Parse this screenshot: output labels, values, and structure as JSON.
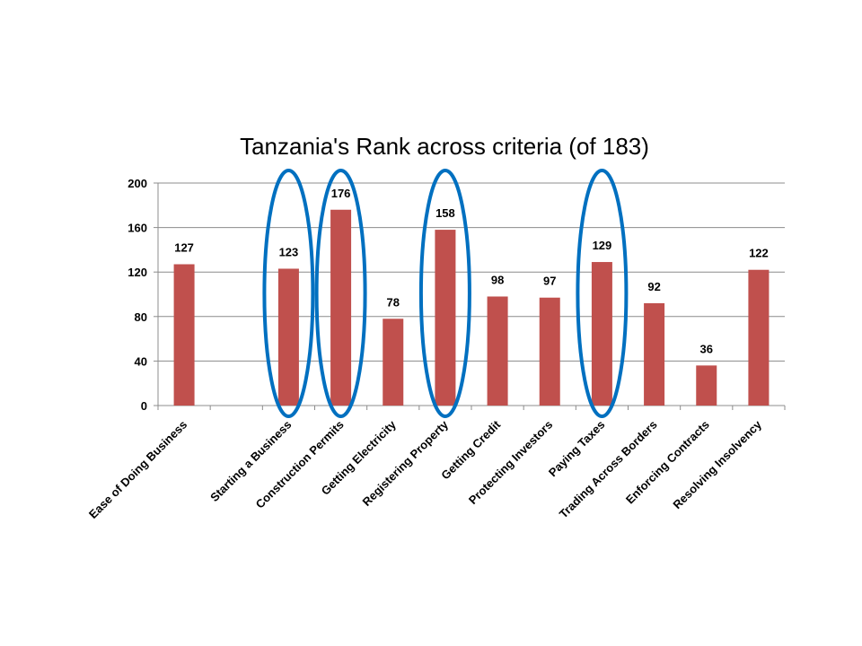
{
  "chart_data": {
    "type": "bar",
    "title": "Tanzania's Rank across criteria (of 183)",
    "xlabel": "",
    "ylabel": "",
    "ylim": [
      0,
      200
    ],
    "yticks": [
      0,
      40,
      80,
      120,
      160,
      200
    ],
    "grid": true,
    "legend": "none",
    "categories": [
      "Ease of Doing Business",
      "",
      "Starting a Business",
      "Construction Permits",
      "Getting Electricity",
      "Registering Property",
      "Getting Credit",
      "Protecting Investors",
      "Paying Taxes",
      "Trading Across Borders",
      "Enforcing Contracts",
      "Resolving Insolvency"
    ],
    "values": [
      127,
      null,
      123,
      176,
      78,
      158,
      98,
      97,
      129,
      92,
      36,
      122
    ],
    "highlighted": [
      "Starting a Business",
      "Construction Permits",
      "Registering Property",
      "Paying Taxes"
    ],
    "colors": {
      "bar": "#c0504d",
      "highlight": "#0070c0",
      "grid": "#8c8c8c"
    }
  }
}
